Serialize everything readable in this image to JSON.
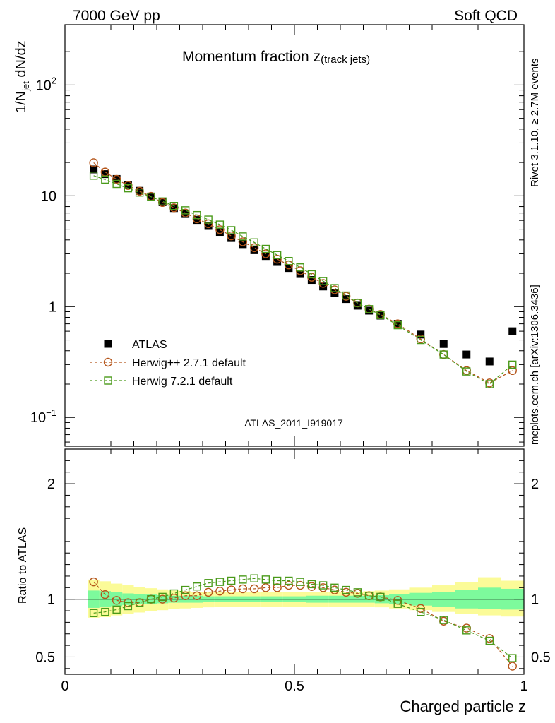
{
  "header": {
    "left": "7000 GeV pp",
    "right": "Soft QCD"
  },
  "title": {
    "main": "Momentum fraction ",
    "var": "z",
    "sub": "(track jets)"
  },
  "side_text": {
    "rivet": "Rivet 3.1.10, ≥ 2.7M events",
    "mcplots": "mcplots.cern.ch [arXiv:1306.3436]"
  },
  "analysis_id": "ATLAS_2011_I919017",
  "colors": {
    "data": "#000000",
    "herwigpp": "#b5561b",
    "herwig7": "#4a9a1a",
    "band_inner": "#7dfa9c",
    "band_outer": "#fbfb98",
    "analysis_label": "#a8a8a8",
    "side_label": "#7f7f7f"
  },
  "chart_data": [
    {
      "type": "scatter",
      "panel": "main",
      "ylabel_prefix": "1/N",
      "ylabel_sub": "jet",
      "ylabel_suffix": " dN/dz",
      "yscale": "log",
      "ylim": [
        0.055,
        350
      ],
      "xlim": [
        0,
        1
      ],
      "yticks": [
        {
          "base": "10",
          "exp": "2"
        },
        {
          "base": "10",
          "exp": ""
        },
        {
          "base": "1",
          "exp": ""
        },
        {
          "base": "10",
          "exp": "−1"
        }
      ],
      "x": [
        0.0625,
        0.0875,
        0.1125,
        0.1375,
        0.1625,
        0.1875,
        0.2125,
        0.2375,
        0.2625,
        0.2875,
        0.3125,
        0.3375,
        0.3625,
        0.3875,
        0.4125,
        0.4375,
        0.4625,
        0.4875,
        0.5125,
        0.5375,
        0.5625,
        0.5875,
        0.6125,
        0.6375,
        0.6625,
        0.6875,
        0.725,
        0.775,
        0.825,
        0.875,
        0.925,
        0.975
      ],
      "series": [
        {
          "name": "ATLAS",
          "marker": "filled-square",
          "values": [
            17.3,
            15.7,
            14.2,
            12.5,
            11.1,
            9.85,
            8.75,
            7.75,
            6.85,
            6.05,
            5.35,
            4.72,
            4.16,
            3.66,
            3.23,
            2.86,
            2.53,
            2.23,
            1.97,
            1.74,
            1.52,
            1.33,
            1.17,
            1.02,
            0.92,
            0.83,
            0.7,
            0.56,
            0.46,
            0.37,
            0.32,
            0.6
          ]
        },
        {
          "name": "Herwig++ 2.7.1 default",
          "marker": "open-circle",
          "values": [
            19.9,
            16.4,
            14.1,
            12.4,
            11.0,
            9.9,
            8.7,
            7.8,
            7.0,
            6.2,
            5.6,
            4.95,
            4.35,
            3.85,
            3.4,
            3.0,
            2.68,
            2.38,
            2.11,
            1.84,
            1.62,
            1.42,
            1.24,
            1.08,
            0.95,
            0.85,
            0.7,
            0.51,
            0.37,
            0.265,
            0.205,
            0.265
          ]
        },
        {
          "name": "Herwig 7.2.1 default",
          "marker": "open-square",
          "values": [
            15.2,
            14.0,
            12.8,
            11.7,
            10.7,
            9.8,
            8.9,
            8.1,
            7.4,
            6.7,
            6.1,
            5.5,
            4.9,
            4.3,
            3.8,
            3.32,
            2.92,
            2.58,
            2.26,
            1.96,
            1.7,
            1.47,
            1.26,
            1.08,
            0.95,
            0.84,
            0.68,
            0.5,
            0.37,
            0.26,
            0.2,
            0.3
          ]
        }
      ]
    },
    {
      "type": "scatter",
      "panel": "ratio",
      "ylabel": "Ratio to ATLAS",
      "xlabel": "Charged particle z",
      "ylim": [
        0.35,
        2.3
      ],
      "xlim": [
        0,
        1
      ],
      "yticks": [
        "2",
        "1",
        "0.5"
      ],
      "xticks": [
        "0",
        "0.5",
        "1"
      ],
      "x": [
        0.0625,
        0.0875,
        0.1125,
        0.1375,
        0.1625,
        0.1875,
        0.2125,
        0.2375,
        0.2625,
        0.2875,
        0.3125,
        0.3375,
        0.3625,
        0.3875,
        0.4125,
        0.4375,
        0.4625,
        0.4875,
        0.5125,
        0.5375,
        0.5625,
        0.5875,
        0.6125,
        0.6375,
        0.6625,
        0.6875,
        0.725,
        0.775,
        0.825,
        0.875,
        0.925,
        0.975
      ],
      "bands": {
        "inner": [
          0.925,
          0.93,
          0.94,
          0.95,
          0.955,
          0.96,
          0.965,
          0.97,
          0.97,
          0.97,
          0.975,
          0.975,
          0.975,
          0.975,
          0.975,
          0.975,
          0.975,
          0.975,
          0.975,
          0.97,
          0.97,
          0.97,
          0.97,
          0.97,
          0.97,
          0.965,
          0.955,
          0.945,
          0.935,
          0.92,
          0.915,
          0.91
        ],
        "inner_hi": [
          1.075,
          1.07,
          1.06,
          1.05,
          1.045,
          1.04,
          1.035,
          1.03,
          1.03,
          1.03,
          1.025,
          1.025,
          1.025,
          1.025,
          1.025,
          1.025,
          1.025,
          1.025,
          1.025,
          1.03,
          1.03,
          1.03,
          1.03,
          1.03,
          1.03,
          1.035,
          1.045,
          1.055,
          1.065,
          1.08,
          1.1,
          1.09
        ],
        "outer": [
          0.84,
          0.845,
          0.86,
          0.875,
          0.885,
          0.895,
          0.905,
          0.915,
          0.92,
          0.925,
          0.93,
          0.935,
          0.935,
          0.935,
          0.935,
          0.935,
          0.935,
          0.935,
          0.935,
          0.935,
          0.935,
          0.935,
          0.935,
          0.935,
          0.935,
          0.93,
          0.92,
          0.905,
          0.89,
          0.87,
          0.86,
          0.85
        ],
        "outer_hi": [
          1.17,
          1.155,
          1.135,
          1.12,
          1.105,
          1.095,
          1.085,
          1.075,
          1.07,
          1.065,
          1.06,
          1.06,
          1.06,
          1.06,
          1.06,
          1.06,
          1.06,
          1.06,
          1.06,
          1.06,
          1.06,
          1.06,
          1.065,
          1.065,
          1.07,
          1.075,
          1.085,
          1.1,
          1.12,
          1.15,
          1.19,
          1.16
        ]
      },
      "series": [
        {
          "name": "Herwig++ 2.7.1 default",
          "marker": "open-circle",
          "values": [
            1.15,
            1.04,
            0.99,
            0.97,
            0.97,
            1.0,
            1.0,
            1.01,
            1.03,
            1.03,
            1.06,
            1.07,
            1.08,
            1.09,
            1.09,
            1.1,
            1.1,
            1.12,
            1.12,
            1.11,
            1.1,
            1.08,
            1.06,
            1.05,
            1.03,
            1.02,
            0.99,
            0.92,
            0.81,
            0.75,
            0.66,
            0.42
          ]
        },
        {
          "name": "Herwig 7.2.1 default",
          "marker": "open-square",
          "values": [
            0.88,
            0.89,
            0.91,
            0.94,
            0.97,
            1.0,
            1.02,
            1.05,
            1.08,
            1.11,
            1.14,
            1.15,
            1.16,
            1.17,
            1.18,
            1.17,
            1.16,
            1.16,
            1.15,
            1.13,
            1.12,
            1.1,
            1.08,
            1.06,
            1.03,
            1.02,
            0.96,
            0.89,
            0.82,
            0.73,
            0.64,
            0.49
          ]
        }
      ]
    }
  ],
  "legend": [
    {
      "label": "ATLAS",
      "marker": "filled-square",
      "line": false
    },
    {
      "label": "Herwig++ 2.7.1 default",
      "marker": "open-circle",
      "line": true
    },
    {
      "label": "Herwig 7.2.1 default",
      "marker": "open-square",
      "line": true
    }
  ]
}
